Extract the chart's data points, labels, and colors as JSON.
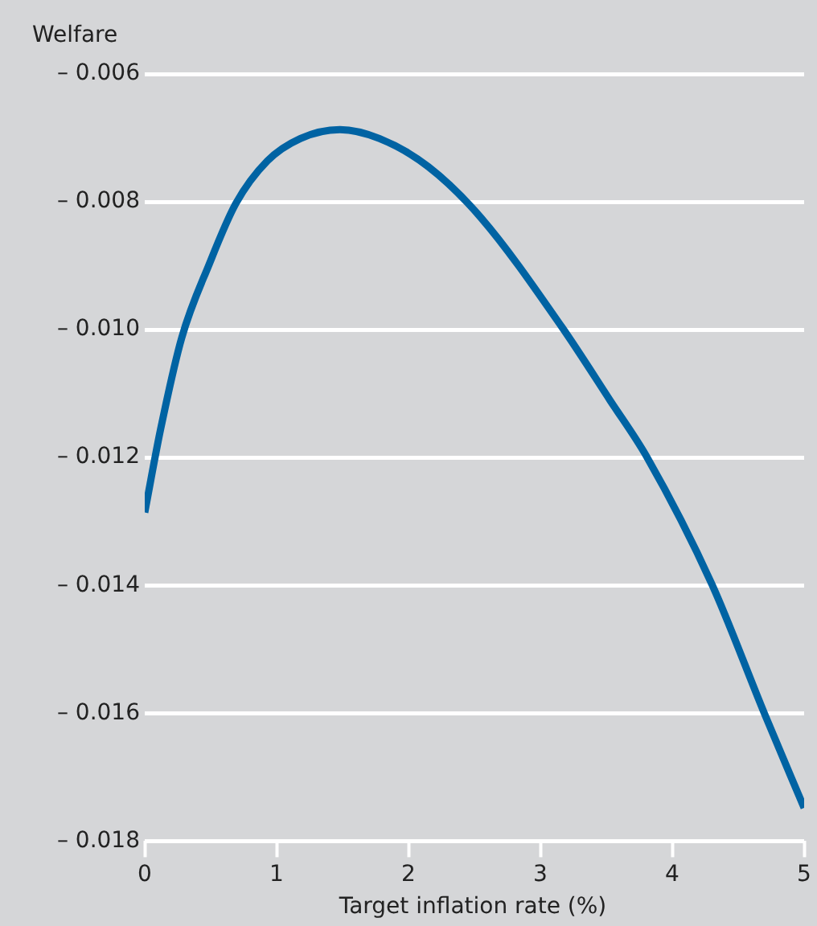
{
  "chart_data": {
    "type": "line",
    "ylabel": "Welfare",
    "xlabel": "Target inflation rate (%)",
    "x": [
      0,
      0.12,
      0.28,
      0.49,
      0.69,
      0.93,
      1.18,
      1.48,
      1.78,
      2.15,
      2.55,
      3.16,
      3.53,
      3.81,
      4.3,
      4.7,
      5
    ],
    "series": [
      {
        "color": "#0063a3",
        "values": [
          -0.01286,
          -0.01156,
          -0.01013,
          -0.00897,
          -0.00803,
          -0.00736,
          -0.00701,
          -0.00687,
          -0.00701,
          -0.00745,
          -0.00825,
          -0.00995,
          -0.01111,
          -0.012,
          -0.01398,
          -0.01601,
          -0.01748
        ]
      }
    ],
    "xlim": [
      0,
      5
    ],
    "xticks": [
      0,
      1,
      2,
      3,
      4,
      5
    ],
    "ylim": [
      -0.018,
      -0.006
    ],
    "yticks": [
      {
        "value": -0.006,
        "label": "– 0.006"
      },
      {
        "value": -0.008,
        "label": "– 0.008"
      },
      {
        "value": -0.01,
        "label": "– 0.010"
      },
      {
        "value": -0.012,
        "label": "– 0.012"
      },
      {
        "value": -0.014,
        "label": "– 0.014"
      },
      {
        "value": -0.016,
        "label": "– 0.016"
      },
      {
        "value": -0.018,
        "label": "– 0.018"
      }
    ],
    "grid": "y",
    "legend": false,
    "marker": "none",
    "line_style": "solid"
  }
}
